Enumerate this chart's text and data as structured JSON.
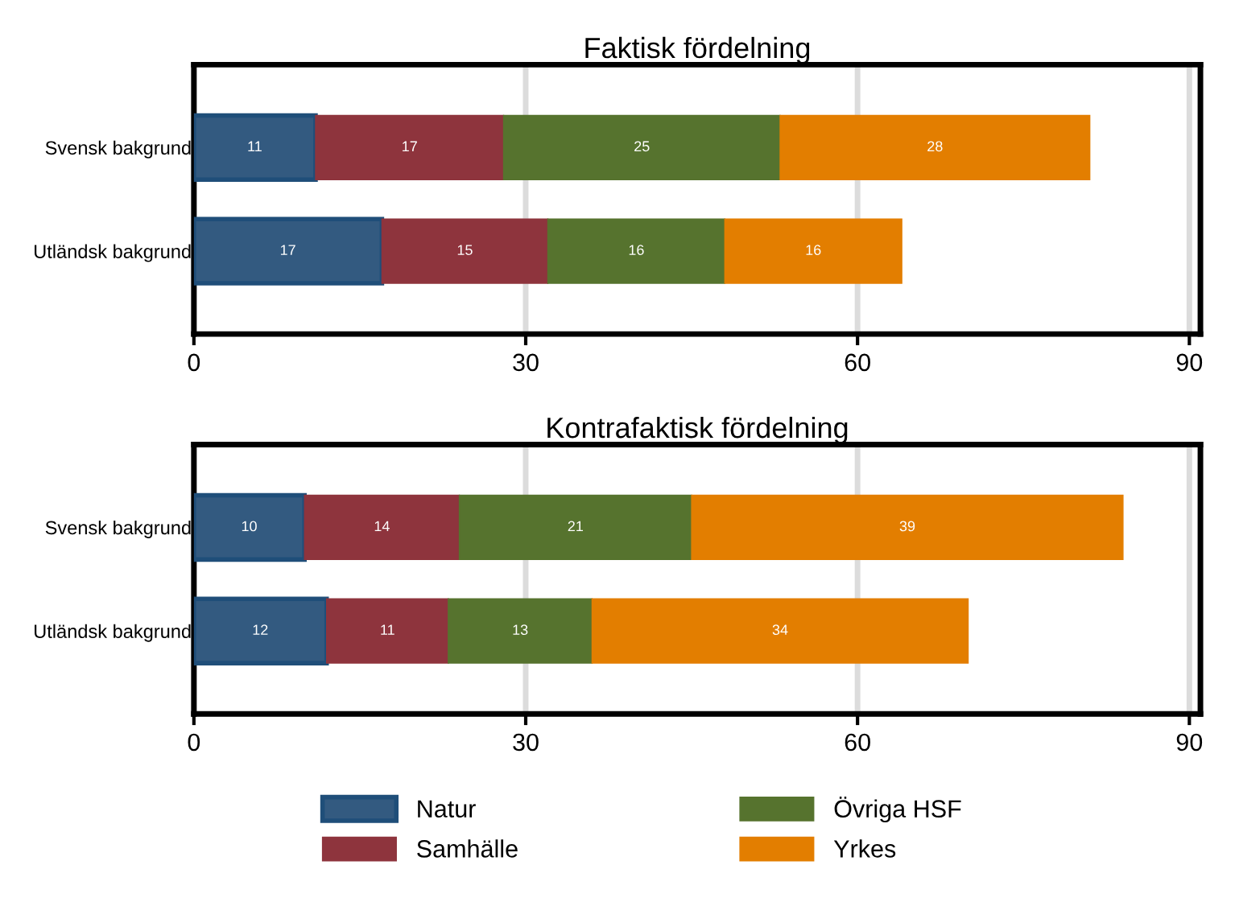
{
  "chart_data": [
    {
      "type": "bar",
      "orientation": "horizontal",
      "stacked": true,
      "title": "Faktisk fördelning",
      "categories": [
        "Svensk bakgrund",
        "Utländsk bakgrund"
      ],
      "series": [
        {
          "name": "Natur",
          "color": "#335a80",
          "values": [
            11,
            17
          ]
        },
        {
          "name": "Samhälle",
          "color": "#8e343d",
          "values": [
            17,
            15
          ]
        },
        {
          "name": "Övriga HSF",
          "color": "#56732e",
          "values": [
            25,
            16
          ]
        },
        {
          "name": "Yrkes",
          "color": "#e37e00",
          "values": [
            28,
            16
          ]
        }
      ],
      "xlim": [
        0,
        91
      ],
      "xticks": [
        0,
        30,
        60,
        90
      ],
      "grid": "x",
      "data_labels": true,
      "legend": "bottom"
    },
    {
      "type": "bar",
      "orientation": "horizontal",
      "stacked": true,
      "title": "Kontrafaktisk fördelning",
      "categories": [
        "Svensk bakgrund",
        "Utländsk bakgrund"
      ],
      "series": [
        {
          "color": "#335a80",
          "values": [
            10,
            12
          ]
        },
        {
          "color": "#8e343d",
          "values": [
            14,
            11
          ]
        },
        {
          "color": "#56732e",
          "values": [
            21,
            13
          ]
        },
        {
          "color": "#e37e00",
          "values": [
            39,
            34
          ]
        }
      ],
      "xlim": [
        0,
        91
      ],
      "xticks": [
        0,
        30,
        60,
        90
      ],
      "grid": "x",
      "data_labels": true
    }
  ]
}
